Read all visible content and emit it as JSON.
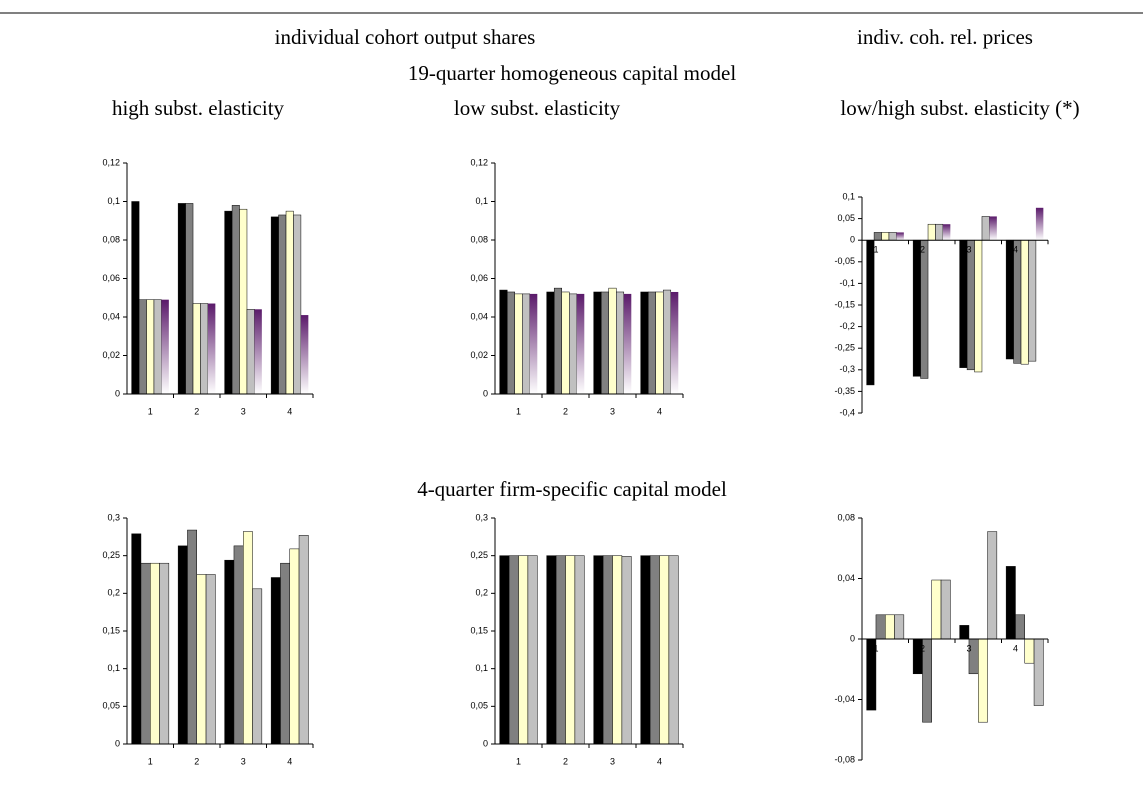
{
  "headings": {
    "left_title": "individual cohort output shares",
    "right_title": "indiv. coh. rel. prices",
    "row1_title": "19-quarter homogeneous capital model",
    "col1_title": "high subst. elasticity",
    "col2_title": "low subst. elasticity",
    "col3_title": "low/high subst. elasticity (*)",
    "row2_title": "4-quarter firm-specific capital model"
  },
  "chart_data": [
    {
      "type": "bar",
      "categories": [
        "1",
        "2",
        "3",
        "4"
      ],
      "series": [
        {
          "color": "#000000",
          "values": [
            0.1,
            0.099,
            0.095,
            0.092
          ]
        },
        {
          "color": "#808080",
          "values": [
            0.049,
            0.099,
            0.098,
            0.093
          ]
        },
        {
          "color": "#ffffcc",
          "values": [
            0.049,
            0.047,
            0.096,
            0.095
          ]
        },
        {
          "color": "#c0c0c0",
          "values": [
            0.049,
            0.047,
            0.044,
            0.093
          ]
        },
        {
          "color": "#5a1a6a",
          "gradient": true,
          "values": [
            0.049,
            0.047,
            0.044,
            0.041
          ]
        }
      ],
      "ylim": [
        0,
        0.12
      ],
      "yticks": [
        0,
        {
          "value": 0.02,
          "label": "0,02"
        },
        {
          "value": 0.04,
          "label": "0,04"
        },
        {
          "value": 0.06,
          "label": "0,06"
        },
        {
          "value": 0.08,
          "label": "0,08"
        },
        {
          "value": 0.1,
          "label": "0,1"
        },
        {
          "value": 0.12,
          "label": "0,12"
        }
      ]
    },
    {
      "type": "bar",
      "categories": [
        "1",
        "2",
        "3",
        "4"
      ],
      "series": [
        {
          "color": "#000000",
          "values": [
            0.054,
            0.053,
            0.053,
            0.053
          ]
        },
        {
          "color": "#808080",
          "values": [
            0.053,
            0.055,
            0.053,
            0.053
          ]
        },
        {
          "color": "#ffffcc",
          "values": [
            0.052,
            0.053,
            0.055,
            0.053
          ]
        },
        {
          "color": "#c0c0c0",
          "values": [
            0.052,
            0.052,
            0.053,
            0.054
          ]
        },
        {
          "color": "#5a1a6a",
          "gradient": true,
          "values": [
            0.052,
            0.052,
            0.052,
            0.053
          ]
        }
      ],
      "ylim": [
        0,
        0.12
      ],
      "yticks": [
        0,
        {
          "value": 0.02,
          "label": "0,02"
        },
        {
          "value": 0.04,
          "label": "0,04"
        },
        {
          "value": 0.06,
          "label": "0,06"
        },
        {
          "value": 0.08,
          "label": "0,08"
        },
        {
          "value": 0.1,
          "label": "0,1"
        },
        {
          "value": 0.12,
          "label": "0,12"
        }
      ]
    },
    {
      "type": "bar",
      "categories": [
        "1",
        "2",
        "3",
        "4"
      ],
      "series": [
        {
          "color": "#000000",
          "values": [
            -0.335,
            -0.315,
            -0.295,
            -0.275
          ]
        },
        {
          "color": "#808080",
          "values": [
            0.018,
            -0.32,
            -0.3,
            -0.285
          ]
        },
        {
          "color": "#ffffcc",
          "values": [
            0.018,
            0.037,
            -0.305,
            -0.287
          ]
        },
        {
          "color": "#c0c0c0",
          "values": [
            0.018,
            0.037,
            0.055,
            -0.28
          ]
        },
        {
          "color": "#5a1a6a",
          "gradient": true,
          "values": [
            0.018,
            0.037,
            0.055,
            0.075
          ]
        }
      ],
      "ylim": [
        -0.4,
        0.1
      ],
      "yticks": [
        {
          "value": -0.4,
          "label": "-0,4"
        },
        {
          "value": -0.35,
          "label": "-0,35"
        },
        {
          "value": -0.3,
          "label": "-0,3"
        },
        {
          "value": -0.25,
          "label": "-0,25"
        },
        {
          "value": -0.2,
          "label": "-0,2"
        },
        {
          "value": -0.15,
          "label": "-0,15"
        },
        {
          "value": -0.1,
          "label": "-0,1"
        },
        {
          "value": -0.05,
          "label": "-0,05"
        },
        0,
        {
          "value": 0.05,
          "label": "0,05"
        },
        {
          "value": 0.1,
          "label": "0,1"
        }
      ]
    },
    {
      "type": "bar",
      "categories": [
        "1",
        "2",
        "3",
        "4"
      ],
      "series": [
        {
          "color": "#000000",
          "values": [
            0.279,
            0.263,
            0.244,
            0.221
          ]
        },
        {
          "color": "#808080",
          "values": [
            0.24,
            0.284,
            0.263,
            0.24
          ]
        },
        {
          "color": "#ffffcc",
          "values": [
            0.24,
            0.225,
            0.282,
            0.259
          ]
        },
        {
          "color": "#c0c0c0",
          "values": [
            0.24,
            0.225,
            0.206,
            0.277
          ]
        }
      ],
      "ylim": [
        0,
        0.3
      ],
      "yticks": [
        0,
        {
          "value": 0.05,
          "label": "0,05"
        },
        {
          "value": 0.1,
          "label": "0,1"
        },
        {
          "value": 0.15,
          "label": "0,15"
        },
        {
          "value": 0.2,
          "label": "0,2"
        },
        {
          "value": 0.25,
          "label": "0,25"
        },
        {
          "value": 0.3,
          "label": "0,3"
        }
      ]
    },
    {
      "type": "bar",
      "categories": [
        "1",
        "2",
        "3",
        "4"
      ],
      "series": [
        {
          "color": "#000000",
          "values": [
            0.25,
            0.25,
            0.25,
            0.25
          ]
        },
        {
          "color": "#808080",
          "values": [
            0.25,
            0.25,
            0.25,
            0.25
          ]
        },
        {
          "color": "#ffffcc",
          "values": [
            0.25,
            0.25,
            0.25,
            0.25
          ]
        },
        {
          "color": "#c0c0c0",
          "values": [
            0.25,
            0.25,
            0.249,
            0.25
          ]
        }
      ],
      "ylim": [
        0,
        0.3
      ],
      "yticks": [
        0,
        {
          "value": 0.05,
          "label": "0,05"
        },
        {
          "value": 0.1,
          "label": "0,1"
        },
        {
          "value": 0.15,
          "label": "0,15"
        },
        {
          "value": 0.2,
          "label": "0,2"
        },
        {
          "value": 0.25,
          "label": "0,25"
        },
        {
          "value": 0.3,
          "label": "0,3"
        }
      ]
    },
    {
      "type": "bar",
      "categories": [
        "1",
        "2",
        "3",
        "4"
      ],
      "series": [
        {
          "color": "#000000",
          "values": [
            -0.047,
            -0.023,
            0.009,
            0.048
          ]
        },
        {
          "color": "#808080",
          "values": [
            0.016,
            -0.055,
            -0.023,
            0.016
          ]
        },
        {
          "color": "#ffffcc",
          "values": [
            0.016,
            0.039,
            -0.055,
            -0.016
          ]
        },
        {
          "color": "#c0c0c0",
          "values": [
            0.016,
            0.039,
            0.071,
            -0.044
          ]
        }
      ],
      "ylim": [
        -0.08,
        0.08
      ],
      "yticks": [
        {
          "value": -0.08,
          "label": "-0,08"
        },
        {
          "value": -0.04,
          "label": "-0,04"
        },
        0,
        {
          "value": 0.04,
          "label": "0,04"
        },
        {
          "value": 0.08,
          "label": "0,08"
        }
      ]
    }
  ]
}
